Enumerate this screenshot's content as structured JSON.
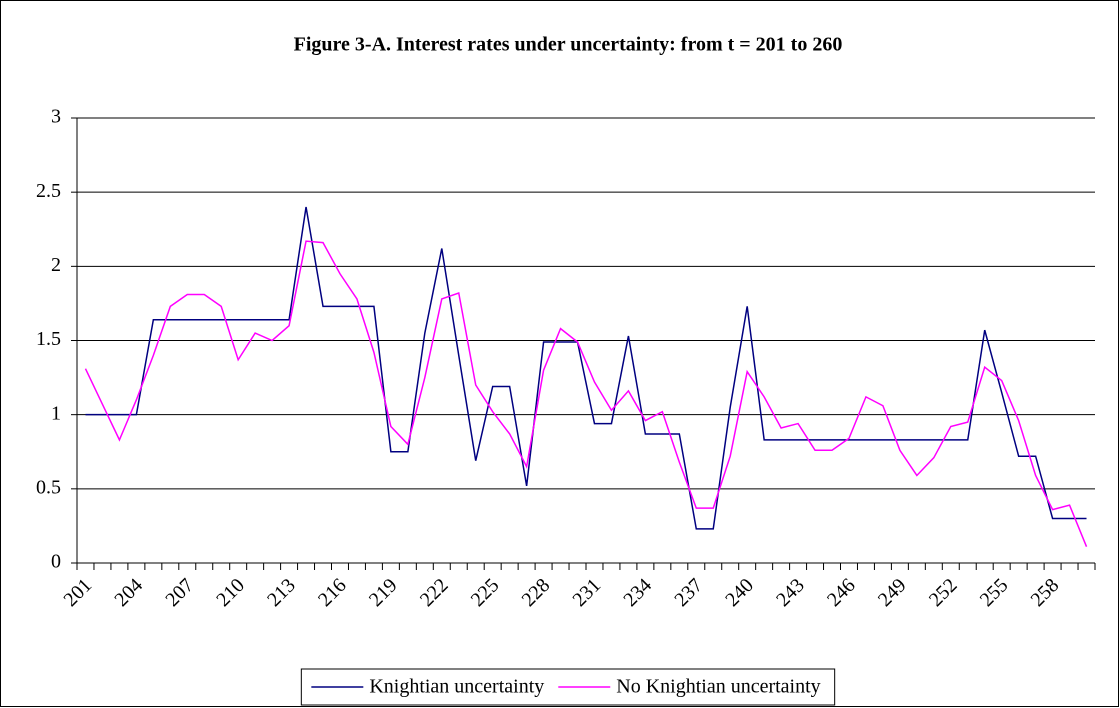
{
  "chart_data": {
    "type": "line",
    "title": "Figure 3-A.  Interest rates under uncertainty: from t = 201 to 260",
    "categories": [
      "201",
      null,
      null,
      "204",
      null,
      null,
      "207",
      null,
      null,
      "210",
      null,
      null,
      "213",
      null,
      null,
      "216",
      null,
      null,
      "219",
      null,
      null,
      "222",
      null,
      null,
      "225",
      null,
      null,
      "228",
      null,
      null,
      "231",
      null,
      null,
      "234",
      null,
      null,
      "237",
      null,
      null,
      "240",
      null,
      null,
      "243",
      null,
      null,
      "246",
      null,
      null,
      "249",
      null,
      null,
      "252",
      null,
      null,
      "255",
      null,
      null,
      "258",
      null,
      null
    ],
    "series": [
      {
        "name": "Knightian uncertainty",
        "color": "#000080",
        "values": [
          1.0,
          1.0,
          1.0,
          1.0,
          1.64,
          1.64,
          1.64,
          1.64,
          1.64,
          1.64,
          1.64,
          1.64,
          1.64,
          2.4,
          1.73,
          1.73,
          1.73,
          1.73,
          0.75,
          0.75,
          1.55,
          2.12,
          1.4,
          0.69,
          1.19,
          1.19,
          0.52,
          1.49,
          1.49,
          1.49,
          0.94,
          0.94,
          1.53,
          0.87,
          0.87,
          0.87,
          0.23,
          0.23,
          1.05,
          1.73,
          0.83,
          0.83,
          0.83,
          0.83,
          0.83,
          0.83,
          0.83,
          0.83,
          0.83,
          0.83,
          0.83,
          0.83,
          0.83,
          1.57,
          1.15,
          0.72,
          0.72,
          0.3,
          0.3,
          0.3
        ]
      },
      {
        "name": "No Knightian uncertainty",
        "color": "#ff00ff",
        "values": [
          1.31,
          1.07,
          0.83,
          1.1,
          1.4,
          1.73,
          1.81,
          1.81,
          1.73,
          1.37,
          1.55,
          1.5,
          1.6,
          2.17,
          2.16,
          1.95,
          1.78,
          1.42,
          0.92,
          0.8,
          1.25,
          1.78,
          1.82,
          1.2,
          1.02,
          0.87,
          0.65,
          1.3,
          1.58,
          1.49,
          1.22,
          1.03,
          1.16,
          0.96,
          1.02,
          0.68,
          0.37,
          0.37,
          0.72,
          1.29,
          1.12,
          0.91,
          0.94,
          0.76,
          0.76,
          0.84,
          1.12,
          1.06,
          0.76,
          0.59,
          0.71,
          0.92,
          0.95,
          1.32,
          1.23,
          0.96,
          0.59,
          0.36,
          0.39,
          0.11
        ]
      }
    ],
    "ylim": [
      0,
      3
    ],
    "yticks": [
      0,
      0.5,
      1,
      1.5,
      2,
      2.5,
      3
    ],
    "grid": true,
    "legend": "bottom"
  }
}
